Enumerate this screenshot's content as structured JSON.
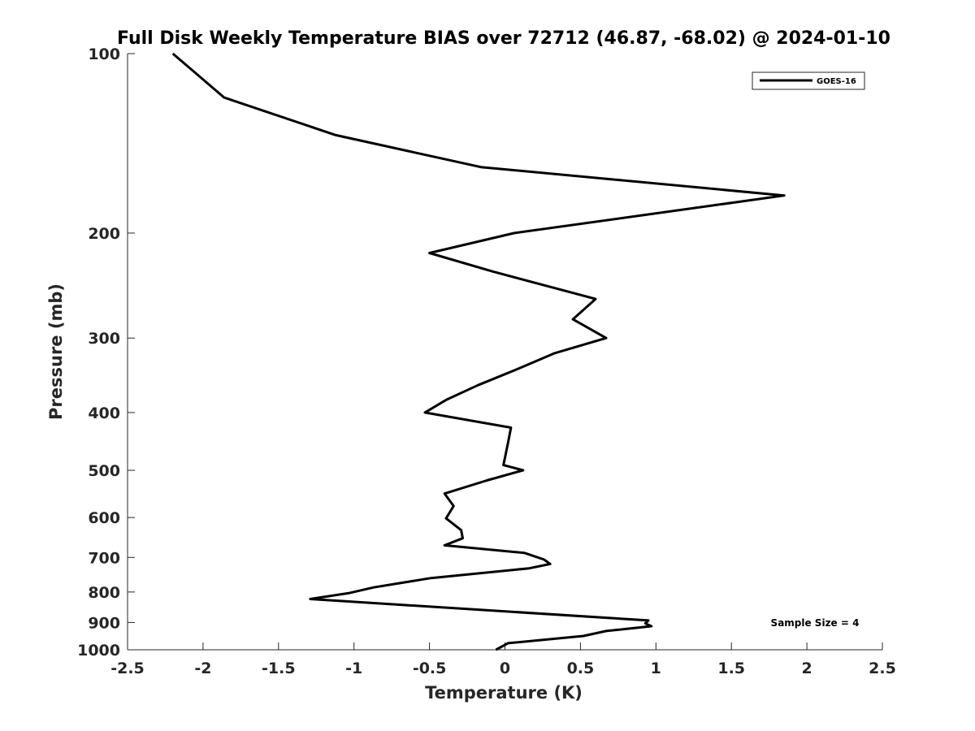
{
  "chart_data": {
    "type": "line",
    "title": "Full Disk Weekly Temperature BIAS over 72712 (46.87, -68.02) @ 2024-01-10",
    "xlabel": "Temperature (K)",
    "ylabel": "Pressure (mb)",
    "xlim": [
      -2.5,
      2.5
    ],
    "ylim": [
      100,
      1000
    ],
    "y_scale": "log",
    "y_reversed": true,
    "grid": false,
    "x_ticks": [
      -2.5,
      -2,
      -1.5,
      -1,
      -0.5,
      0,
      0.5,
      1,
      1.5,
      2,
      2.5
    ],
    "x_tick_labels": [
      "-2.5",
      "-2",
      "-1.5",
      "-1",
      "-0.5",
      "0",
      "0.5",
      "1",
      "1.5",
      "2",
      "2.5"
    ],
    "y_ticks": [
      100,
      200,
      300,
      400,
      500,
      600,
      700,
      800,
      900,
      1000
    ],
    "y_tick_labels": [
      "100",
      "200",
      "300",
      "400",
      "500",
      "600",
      "700",
      "800",
      "900",
      "1000"
    ],
    "legend_position": "top-right",
    "annotation": "Sample Size = 4",
    "series": [
      {
        "name": "GOES-16",
        "color": "#000000",
        "points": [
          {
            "x": -2.2,
            "p": 100
          },
          {
            "x": -1.86,
            "p": 118.5
          },
          {
            "x": -1.12,
            "p": 137
          },
          {
            "x": -0.16,
            "p": 155
          },
          {
            "x": 1.85,
            "p": 173
          },
          {
            "x": 0.06,
            "p": 200
          },
          {
            "x": -0.5,
            "p": 216
          },
          {
            "x": -0.08,
            "p": 232
          },
          {
            "x": 0.6,
            "p": 258
          },
          {
            "x": 0.45,
            "p": 279
          },
          {
            "x": 0.67,
            "p": 300
          },
          {
            "x": 0.33,
            "p": 318
          },
          {
            "x": 0.11,
            "p": 336
          },
          {
            "x": -0.18,
            "p": 360
          },
          {
            "x": -0.39,
            "p": 381
          },
          {
            "x": -0.53,
            "p": 400
          },
          {
            "x": 0.04,
            "p": 424
          },
          {
            "x": 0.02,
            "p": 450
          },
          {
            "x": 0.0,
            "p": 476
          },
          {
            "x": -0.01,
            "p": 490
          },
          {
            "x": 0.12,
            "p": 500
          },
          {
            "x": -0.12,
            "p": 520
          },
          {
            "x": -0.4,
            "p": 547
          },
          {
            "x": -0.34,
            "p": 574
          },
          {
            "x": -0.39,
            "p": 602
          },
          {
            "x": -0.29,
            "p": 630
          },
          {
            "x": -0.28,
            "p": 650
          },
          {
            "x": -0.4,
            "p": 668
          },
          {
            "x": 0.13,
            "p": 688
          },
          {
            "x": 0.26,
            "p": 706
          },
          {
            "x": 0.3,
            "p": 718
          },
          {
            "x": 0.16,
            "p": 730
          },
          {
            "x": -0.49,
            "p": 758
          },
          {
            "x": -0.87,
            "p": 786
          },
          {
            "x": -1.03,
            "p": 803
          },
          {
            "x": -1.29,
            "p": 822
          },
          {
            "x": 0.95,
            "p": 893
          },
          {
            "x": 0.93,
            "p": 903
          },
          {
            "x": 0.97,
            "p": 913
          },
          {
            "x": 0.67,
            "p": 930
          },
          {
            "x": 0.52,
            "p": 948
          },
          {
            "x": 0.02,
            "p": 975
          },
          {
            "x": -0.06,
            "p": 1000
          }
        ]
      }
    ]
  }
}
